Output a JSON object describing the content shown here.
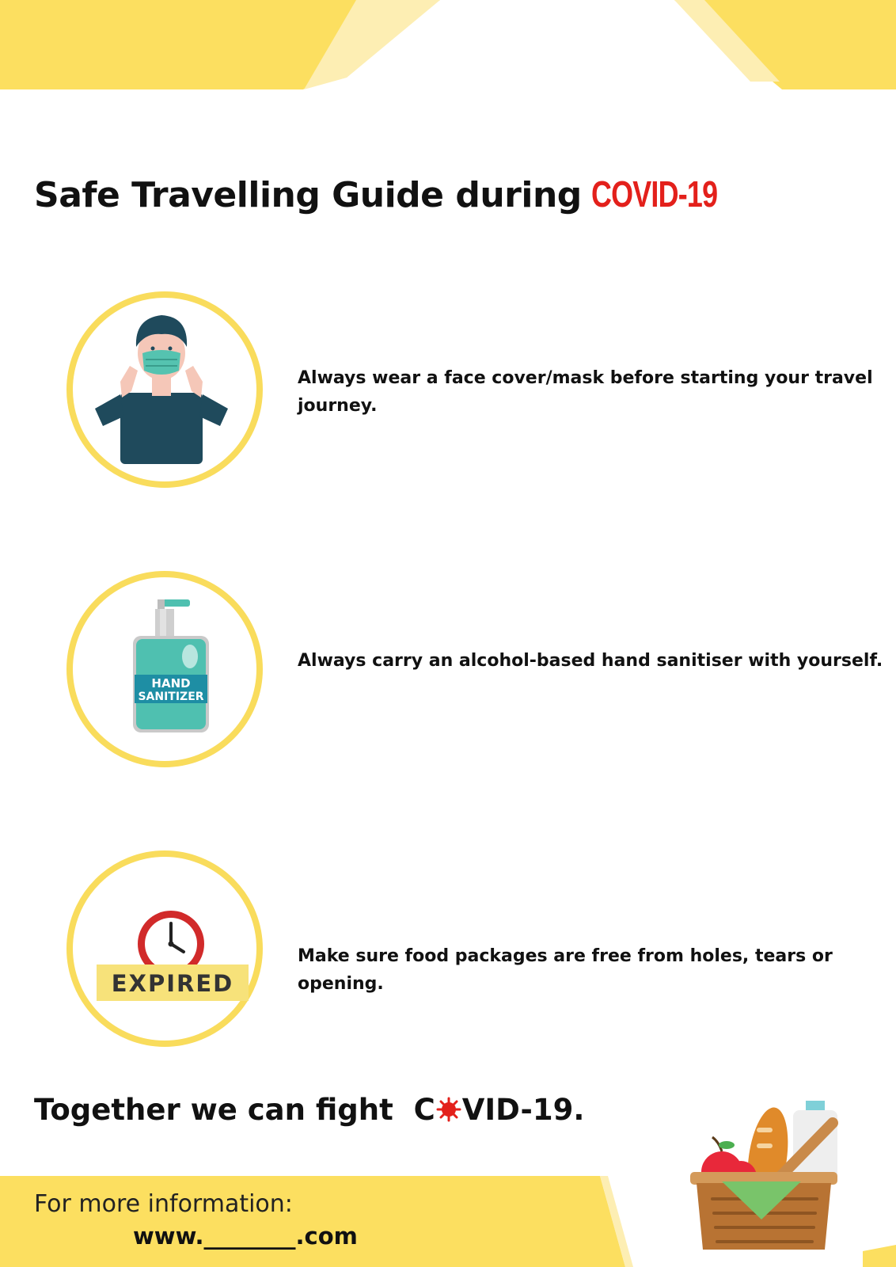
{
  "colors": {
    "accent_yellow": "#fcdf60",
    "pale_yellow": "#fdeeb3",
    "highlight_red": "#e3201b",
    "text": "#111111"
  },
  "header": {
    "title": "Safe Travelling Guide during",
    "title_highlight": "COVID-19"
  },
  "tips": [
    {
      "icon": "face-mask-person-icon",
      "text": "Always wear a face cover/mask before starting your travel journey."
    },
    {
      "icon": "hand-sanitizer-icon",
      "text": "Always carry an alcohol-based hand sanitiser with yourself.",
      "label_line1": "HAND",
      "label_line2": "SANITIZER"
    },
    {
      "icon": "expired-clock-icon",
      "text": "Make sure food packages are free from holes, tears or opening.",
      "stamp": "EXPIRED"
    }
  ],
  "slogan": {
    "prefix": "Together we can fight",
    "c": "C",
    "rest": "VID-19."
  },
  "footer": {
    "label": "For more information:",
    "url": "www.________.com"
  },
  "decor": {
    "basket_icon": "food-basket-icon",
    "virus_icon": "virus-icon"
  }
}
